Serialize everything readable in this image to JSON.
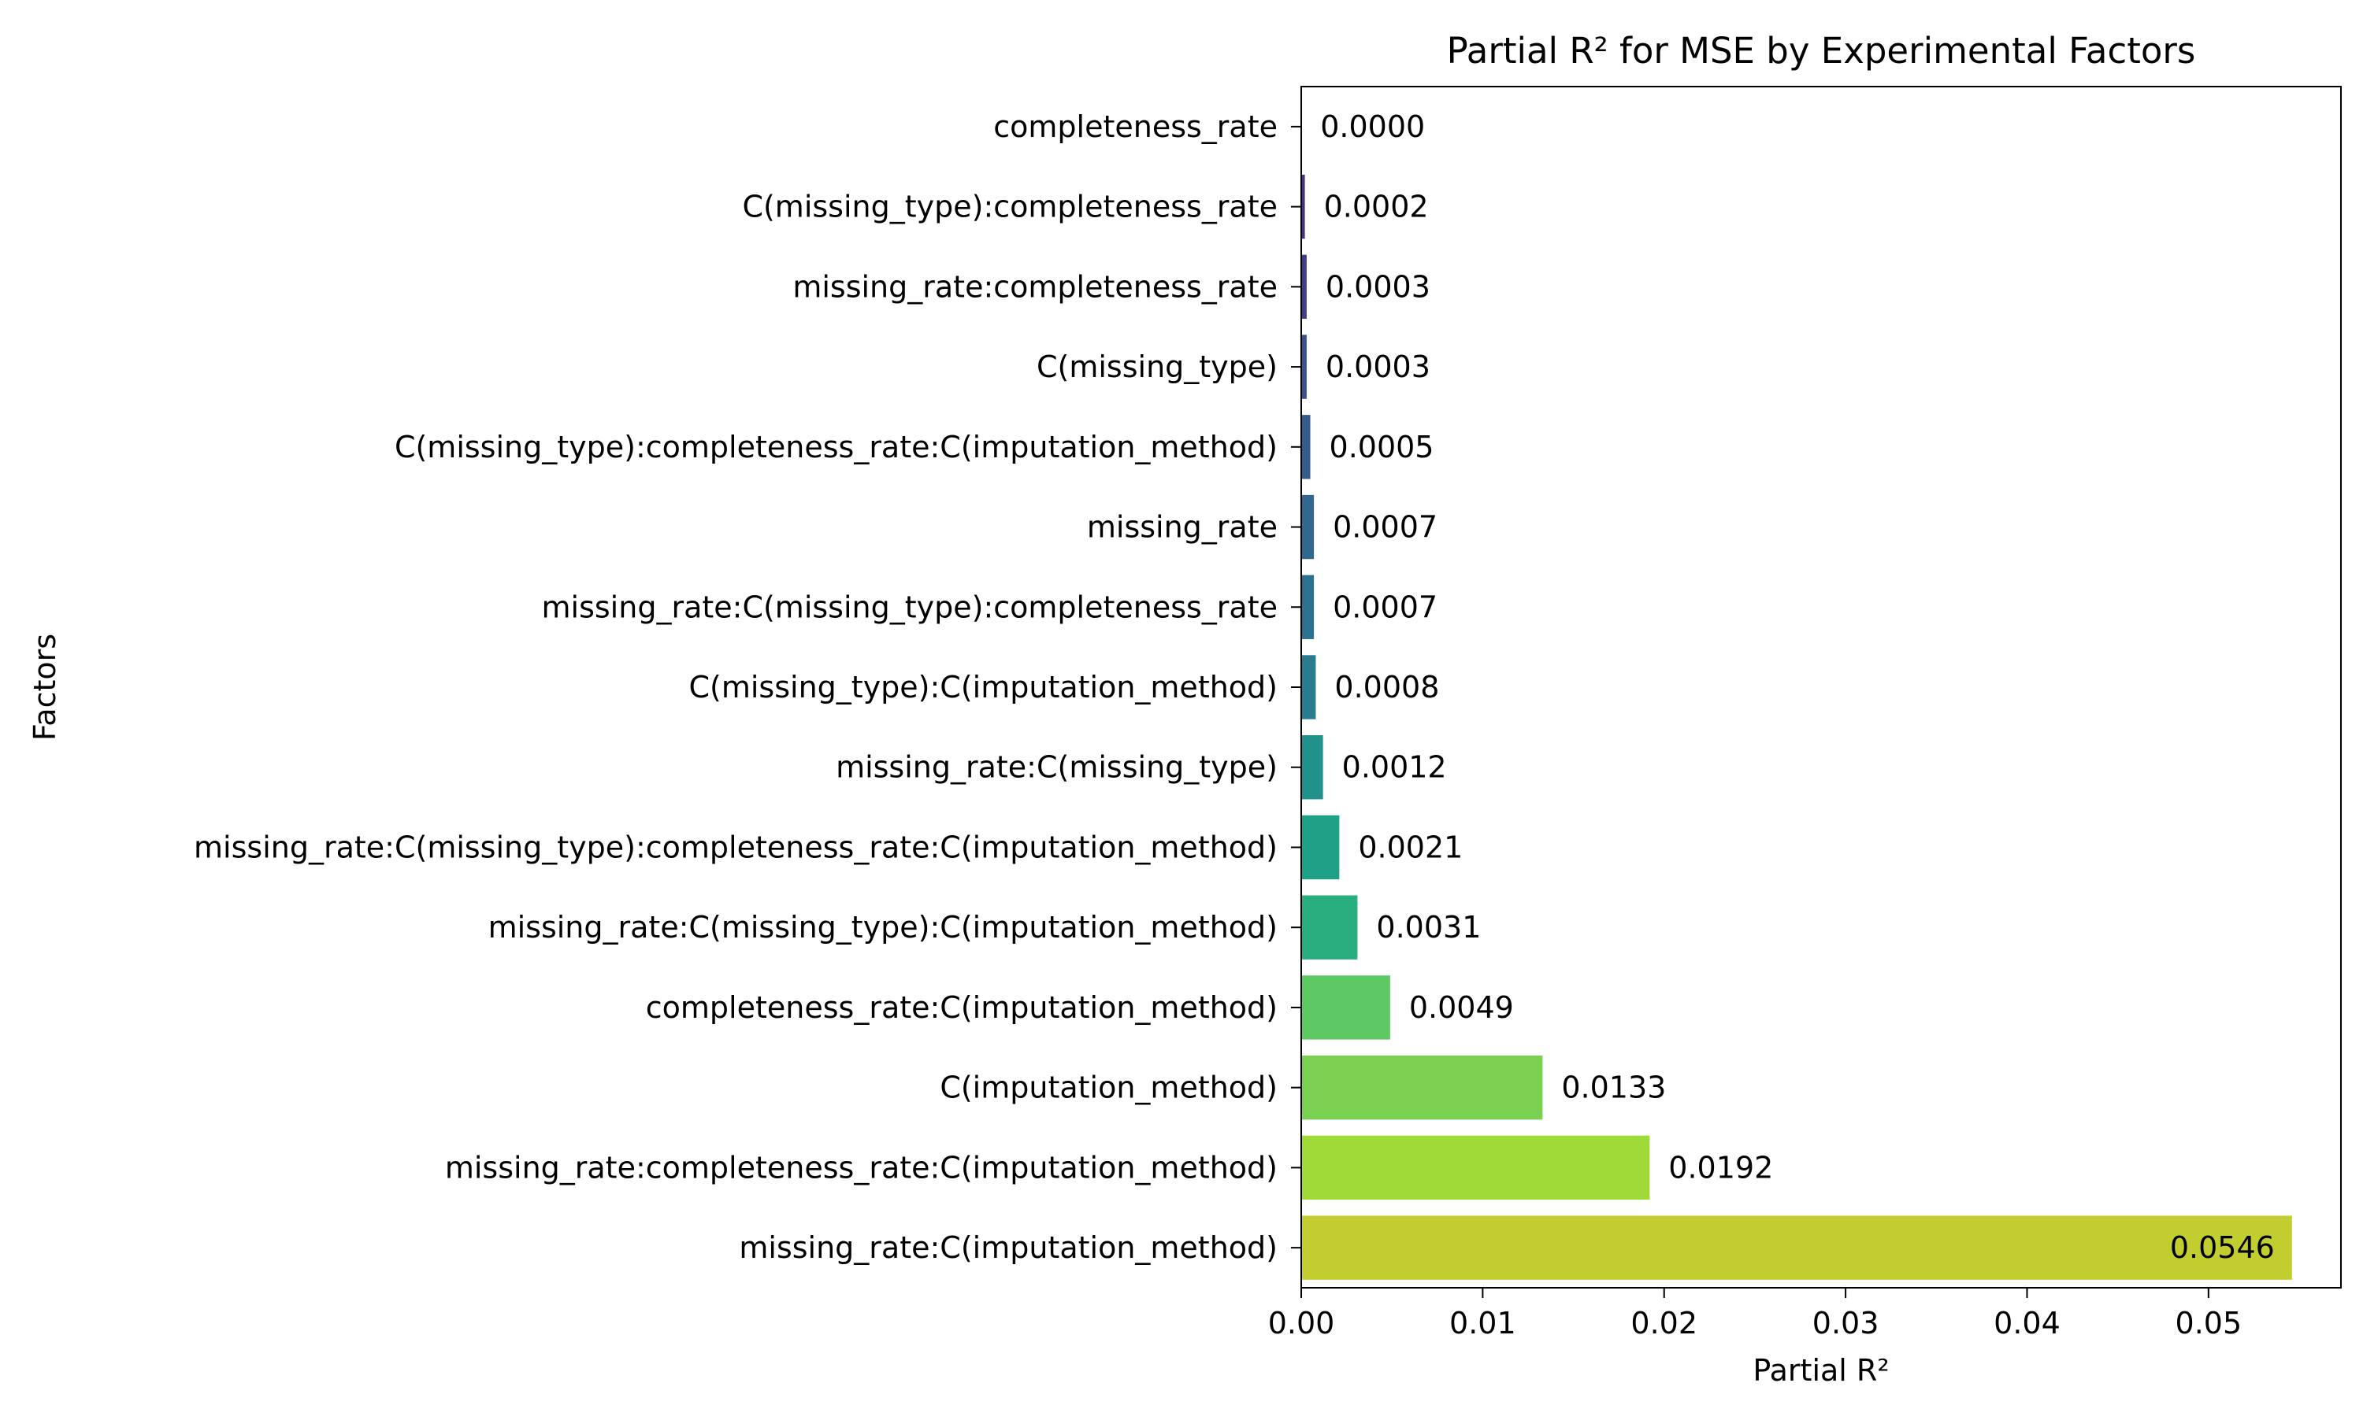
{
  "chart_data": {
    "type": "bar",
    "orientation": "horizontal",
    "title": "Partial R² for MSE by Experimental Factors",
    "xlabel": "Partial R²",
    "ylabel": "Factors",
    "xlim": [
      0,
      0.0573
    ],
    "xticks": [
      0.0,
      0.01,
      0.02,
      0.03,
      0.04,
      0.05
    ],
    "xtick_labels": [
      "0.00",
      "0.01",
      "0.02",
      "0.03",
      "0.04",
      "0.05"
    ],
    "grid": false,
    "legend": "none",
    "categories": [
      "completeness_rate",
      "C(missing_type):completeness_rate",
      "missing_rate:completeness_rate",
      "C(missing_type)",
      "C(missing_type):completeness_rate:C(imputation_method)",
      "missing_rate",
      "missing_rate:C(missing_type):completeness_rate",
      "C(missing_type):C(imputation_method)",
      "missing_rate:C(missing_type)",
      "missing_rate:C(missing_type):completeness_rate:C(imputation_method)",
      "missing_rate:C(missing_type):C(imputation_method)",
      "completeness_rate:C(imputation_method)",
      "C(imputation_method)",
      "missing_rate:completeness_rate:C(imputation_method)",
      "missing_rate:C(imputation_method)"
    ],
    "values": [
      1e-05,
      0.0002,
      0.0003,
      0.0003,
      0.0005,
      0.0007,
      0.0007,
      0.0008,
      0.0012,
      0.0021,
      0.0031,
      0.0049,
      0.0133,
      0.0192,
      0.0546
    ],
    "value_labels": [
      "0.0000",
      "0.0002",
      "0.0003",
      "0.0003",
      "0.0005",
      "0.0007",
      "0.0007",
      "0.0008",
      "0.0012",
      "0.0021",
      "0.0031",
      "0.0049",
      "0.0133",
      "0.0192",
      "0.0546"
    ],
    "colors": [
      "#440154",
      "#481467",
      "#482576",
      "#453781",
      "#3f4788",
      "#39558c",
      "#32648e",
      "#2d718e",
      "#287d8e",
      "#238a8d",
      "#1f968b",
      "#20a386",
      "#29af7f",
      "#3dbc74",
      "#56c667"
    ],
    "bar_colors_actual": [
      "#46327e",
      "#46327e",
      "#433e85",
      "#3b528b",
      "#365c8d",
      "#31688e",
      "#2c728e",
      "#287c8e",
      "#21918c",
      "#1fa187",
      "#29af7f",
      "#5ec962",
      "#7ad151",
      "#a0da39",
      "#c2cd30"
    ]
  }
}
